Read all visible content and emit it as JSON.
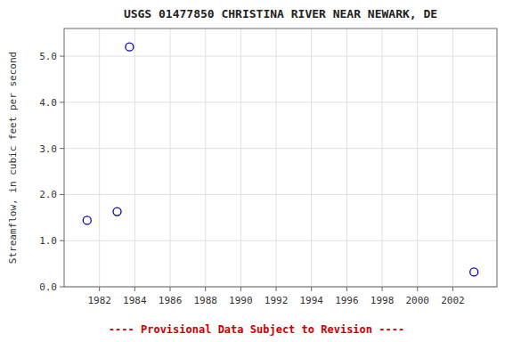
{
  "chart_data": {
    "type": "scatter",
    "title": "USGS 01477850 CHRISTINA RIVER NEAR NEWARK, DE",
    "y_label": "Streamflow, in cubic feet per second",
    "x": [
      1981.3,
      1983.0,
      1983.7,
      2003.2
    ],
    "values": [
      1.44,
      1.63,
      5.2,
      0.32
    ],
    "color": "#0000bb",
    "marker": "open-circle",
    "xlim": [
      1980.0,
      2004.5
    ],
    "ylim": [
      0.0,
      5.6
    ],
    "xticks": [
      1982,
      1984,
      1986,
      1988,
      1990,
      1992,
      1994,
      1996,
      1998,
      2000,
      2002
    ],
    "yticks": [
      {
        "value": 0.0,
        "label": "0.0"
      },
      {
        "value": 1.0,
        "label": "1.0"
      },
      {
        "value": 2.0,
        "label": "2.0"
      },
      {
        "value": 3.0,
        "label": "3.0"
      },
      {
        "value": 4.0,
        "label": "4.0"
      },
      {
        "value": 5.0,
        "label": "5.0"
      }
    ],
    "grid": true,
    "annotations": [
      "---- Provisional Data Subject to Revision ----"
    ]
  }
}
